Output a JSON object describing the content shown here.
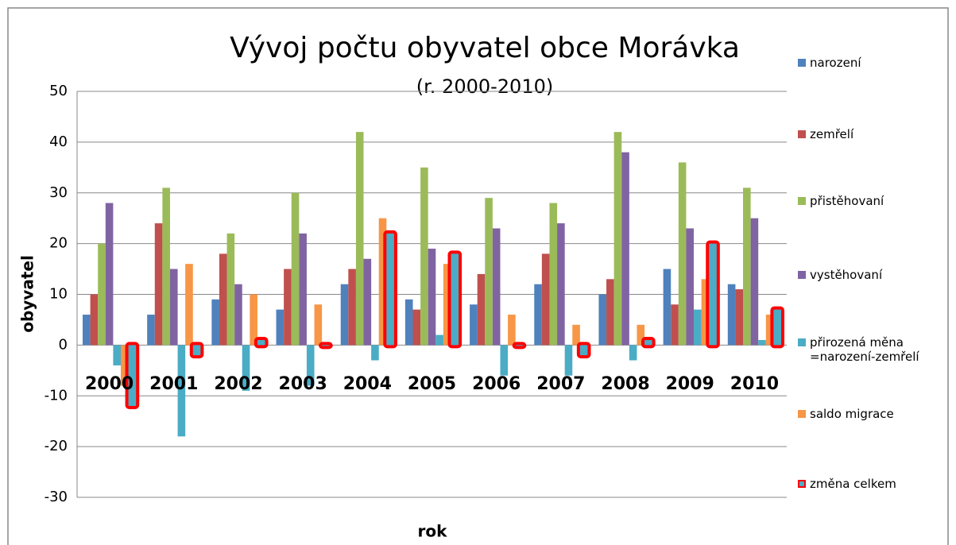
{
  "chart_data": {
    "type": "bar",
    "title": "Vývoj počtu obyvatel obce  Morávka",
    "subtitle": "(r. 2000-2010)",
    "y_label": "obyvatel",
    "x_label": "rok",
    "categories": [
      "2000",
      "2001",
      "2002",
      "2003",
      "2004",
      "2005",
      "2006",
      "2007",
      "2008",
      "2009",
      "2010"
    ],
    "series": [
      {
        "name": "narození",
        "color": "#4f81bd",
        "values": [
          6,
          6,
          9,
          7,
          12,
          9,
          8,
          12,
          10,
          15,
          12
        ]
      },
      {
        "name": "zemřelí",
        "color": "#c0504d",
        "values": [
          10,
          24,
          18,
          15,
          15,
          7,
          14,
          18,
          13,
          8,
          11
        ]
      },
      {
        "name": "přistěhovaní",
        "color": "#9bbb59",
        "values": [
          20,
          31,
          22,
          30,
          42,
          35,
          29,
          28,
          42,
          36,
          31
        ]
      },
      {
        "name": "vystěhovaní",
        "color": "#8064a2",
        "values": [
          28,
          15,
          12,
          22,
          17,
          19,
          23,
          24,
          38,
          23,
          25
        ]
      },
      {
        "name": "přirozená měna =narození-zemřelí",
        "color": "#4bacc6",
        "values": [
          -4,
          -18,
          -9,
          -8,
          -3,
          2,
          -6,
          -6,
          -3,
          7,
          1
        ]
      },
      {
        "name": "saldo migrace",
        "color": "#f79646",
        "values": [
          -8,
          16,
          10,
          8,
          25,
          16,
          6,
          4,
          4,
          13,
          6
        ]
      },
      {
        "name": "změna celkem",
        "color": "#4bacc6",
        "border": "#ff0000",
        "values": [
          -12,
          -2,
          1,
          0,
          22,
          18,
          0,
          -2,
          1,
          20,
          7
        ]
      }
    ],
    "ylim": [
      -30,
      50
    ],
    "yticks": [
      -30,
      -20,
      -10,
      0,
      10,
      20,
      30,
      40,
      50
    ],
    "grid": true
  }
}
